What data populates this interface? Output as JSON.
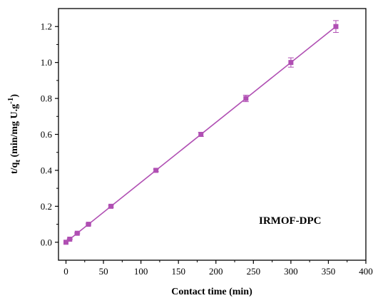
{
  "chart_data": {
    "type": "scatter",
    "xlabel": "Contact time (min)",
    "ylabel_parts": {
      "t": "t/q",
      "sub": "t",
      "mid": " (min/mg U.g",
      "sup": "-1",
      "end": ")"
    },
    "annotation": "IRMOF-DPC",
    "xlim": [
      -10,
      400
    ],
    "ylim": [
      -0.1,
      1.3
    ],
    "x_ticks": [
      0,
      50,
      100,
      150,
      200,
      250,
      300,
      350,
      400
    ],
    "y_ticks": [
      0.0,
      0.2,
      0.4,
      0.6,
      0.8,
      1.0,
      1.2
    ],
    "y_tick_labels": [
      "0.0",
      "0.2",
      "0.4",
      "0.6",
      "0.8",
      "1.0",
      "1.2"
    ],
    "grid": false,
    "series": [
      {
        "points": [
          {
            "x": 0,
            "y": 0.0,
            "err": 0.0
          },
          {
            "x": 5,
            "y": 0.017,
            "err": 0.002
          },
          {
            "x": 15,
            "y": 0.05,
            "err": 0.003
          },
          {
            "x": 30,
            "y": 0.1,
            "err": 0.004
          },
          {
            "x": 60,
            "y": 0.2,
            "err": 0.005
          },
          {
            "x": 120,
            "y": 0.4,
            "err": 0.007
          },
          {
            "x": 180,
            "y": 0.6,
            "err": 0.012
          },
          {
            "x": 240,
            "y": 0.8,
            "err": 0.018
          },
          {
            "x": 300,
            "y": 1.0,
            "err": 0.026
          },
          {
            "x": 360,
            "y": 1.2,
            "err": 0.033
          }
        ],
        "fit_line": {
          "x0": 0,
          "y0": 0.0,
          "x1": 360,
          "y1": 1.2
        }
      }
    ],
    "colors": {
      "series": "#b04fb3",
      "axis": "#000000"
    }
  }
}
